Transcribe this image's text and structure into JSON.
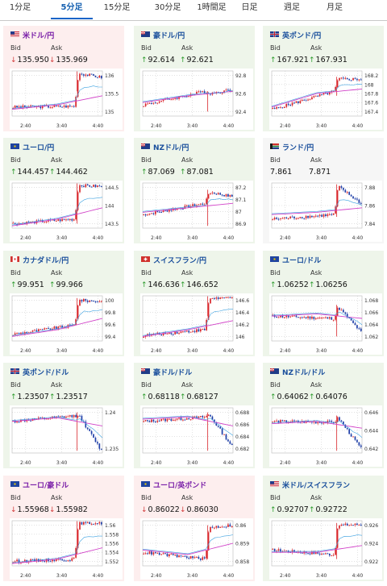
{
  "tabs": [
    {
      "label": "1分足",
      "active": false
    },
    {
      "label": "5分足",
      "active": true
    },
    {
      "label": "15分足",
      "active": false
    },
    {
      "label": "30分足",
      "active": false
    },
    {
      "label": "1時間足",
      "active": false
    },
    {
      "label": "日足",
      "active": false
    },
    {
      "label": "週足",
      "active": false
    },
    {
      "label": "月足",
      "active": false
    }
  ],
  "labels": {
    "bid": "Bid",
    "ask": "Ask"
  },
  "colors": {
    "up_bg": "#eef5ea",
    "down_bg": "#fdeeee",
    "flat_bg": "#f6f6f6",
    "candle_up": "#d9262b",
    "candle_down": "#1f3fa8",
    "ma": "#d142c8",
    "ma2": "#3aa0e0"
  },
  "x_ticks": [
    "2:40",
    "3:40",
    "4:40"
  ],
  "pairs": [
    {
      "name": "米ドル/円",
      "flag": "us",
      "dir": "down",
      "bid": "135.950",
      "ask": "135.969",
      "bid_dir": "down",
      "ask_dir": "down",
      "chart_data": {
        "type": "candlestick",
        "y_ticks": [
          "136",
          "135.5",
          "135"
        ],
        "ylim": [
          134.75,
          136.1
        ]
      }
    },
    {
      "name": "豪ドル/円",
      "flag": "au",
      "dir": "up",
      "bid": "92.614",
      "ask": "92.621",
      "bid_dir": "up",
      "ask_dir": "up",
      "chart_data": {
        "type": "candlestick",
        "y_ticks": [
          "92.8",
          "92.6",
          "92.4"
        ],
        "ylim": [
          92.3,
          92.9
        ]
      }
    },
    {
      "name": "英ポンド/円",
      "flag": "gb",
      "dir": "up",
      "bid": "167.921",
      "ask": "167.931",
      "bid_dir": "up",
      "ask_dir": "up",
      "chart_data": {
        "type": "candlestick",
        "y_ticks": [
          "168.2",
          "168",
          "167.8",
          "167.6",
          "167.4"
        ],
        "ylim": [
          167.3,
          168.3
        ]
      }
    },
    {
      "name": "ユーロ/円",
      "flag": "eu",
      "dir": "up",
      "bid": "144.457",
      "ask": "144.462",
      "bid_dir": "up",
      "ask_dir": "up",
      "chart_data": {
        "type": "candlestick",
        "y_ticks": [
          "144.5",
          "144",
          "143.5"
        ],
        "ylim": [
          143.4,
          144.7
        ]
      }
    },
    {
      "name": "NZドル/円",
      "flag": "nz",
      "dir": "up",
      "bid": "87.069",
      "ask": "87.081",
      "bid_dir": "up",
      "ask_dir": "up",
      "chart_data": {
        "type": "candlestick",
        "y_ticks": [
          "87.2",
          "87.1",
          "87",
          "86.9"
        ],
        "ylim": [
          86.85,
          87.25
        ]
      }
    },
    {
      "name": "ランド/円",
      "flag": "za",
      "dir": "flat",
      "bid": "7.861",
      "ask": "7.871",
      "bid_dir": "none",
      "ask_dir": "none",
      "chart_data": {
        "type": "candlestick",
        "y_ticks": [
          "7.88",
          "7.86",
          "7.84"
        ],
        "ylim": [
          7.83,
          7.89
        ]
      }
    },
    {
      "name": "カナダドル/円",
      "flag": "ca",
      "dir": "up",
      "bid": "99.951",
      "ask": "99.966",
      "bid_dir": "up",
      "ask_dir": "up",
      "chart_data": {
        "type": "candlestick",
        "y_ticks": [
          "100",
          "99.8",
          "99.6",
          "99.4"
        ],
        "ylim": [
          99.35,
          100.05
        ]
      }
    },
    {
      "name": "スイスフラン/円",
      "flag": "ch",
      "dir": "up",
      "bid": "146.636",
      "ask": "146.652",
      "bid_dir": "up",
      "ask_dir": "up",
      "chart_data": {
        "type": "candlestick",
        "y_ticks": [
          "146.6",
          "146.4",
          "146.2",
          "146"
        ],
        "ylim": [
          145.9,
          146.7
        ]
      }
    },
    {
      "name": "ユーロ/ドル",
      "flag": "eu",
      "dir": "up",
      "bid": "1.06252",
      "ask": "1.06256",
      "bid_dir": "up",
      "ask_dir": "up",
      "chart_data": {
        "type": "candlestick",
        "y_ticks": [
          "1.068",
          "1.066",
          "1.064",
          "1.062"
        ],
        "ylim": [
          1.0615,
          1.0685
        ]
      }
    },
    {
      "name": "英ポンド/ドル",
      "flag": "gb",
      "dir": "up",
      "bid": "1.23507",
      "ask": "1.23517",
      "bid_dir": "up",
      "ask_dir": "up",
      "chart_data": {
        "type": "candlestick",
        "y_ticks": [
          "1.24",
          "1.235"
        ],
        "ylim": [
          1.2335,
          1.2445
        ]
      }
    },
    {
      "name": "豪ドル/ドル",
      "flag": "au",
      "dir": "up",
      "bid": "0.68118",
      "ask": "0.68127",
      "bid_dir": "up",
      "ask_dir": "up",
      "chart_data": {
        "type": "candlestick",
        "y_ticks": [
          "0.688",
          "0.686",
          "0.684",
          "0.682"
        ],
        "ylim": [
          0.681,
          0.689
        ]
      }
    },
    {
      "name": "NZドル/ドル",
      "flag": "nz",
      "dir": "up",
      "bid": "0.64062",
      "ask": "0.64076",
      "bid_dir": "up",
      "ask_dir": "up",
      "chart_data": {
        "type": "candlestick",
        "y_ticks": [
          "0.646",
          "0.644",
          "0.642"
        ],
        "ylim": [
          0.6405,
          0.6468
        ]
      }
    },
    {
      "name": "ユーロ/豪ドル",
      "flag": "eu",
      "dir": "down",
      "bid": "1.55968",
      "ask": "1.55982",
      "bid_dir": "down",
      "ask_dir": "down",
      "chart_data": {
        "type": "candlestick",
        "y_ticks": [
          "1.56",
          "1.558",
          "1.556",
          "1.554",
          "1.552"
        ],
        "ylim": [
          1.551,
          1.5607
        ]
      }
    },
    {
      "name": "ユーロ/英ポンド",
      "flag": "eu",
      "dir": "down",
      "bid": "0.86022",
      "ask": "0.86030",
      "bid_dir": "down",
      "ask_dir": "down",
      "chart_data": {
        "type": "candlestick",
        "y_ticks": [
          "0.86",
          "0.859",
          "0.858"
        ],
        "ylim": [
          0.8573,
          0.8606
        ]
      }
    },
    {
      "name": "米ドル/スイスフラン",
      "flag": "us",
      "dir": "up",
      "bid": "0.92707",
      "ask": "0.92722",
      "bid_dir": "up",
      "ask_dir": "up",
      "chart_data": {
        "type": "candlestick",
        "y_ticks": [
          "0.926",
          "0.924",
          "0.922"
        ],
        "ylim": [
          0.9212,
          0.9275
        ]
      }
    }
  ]
}
